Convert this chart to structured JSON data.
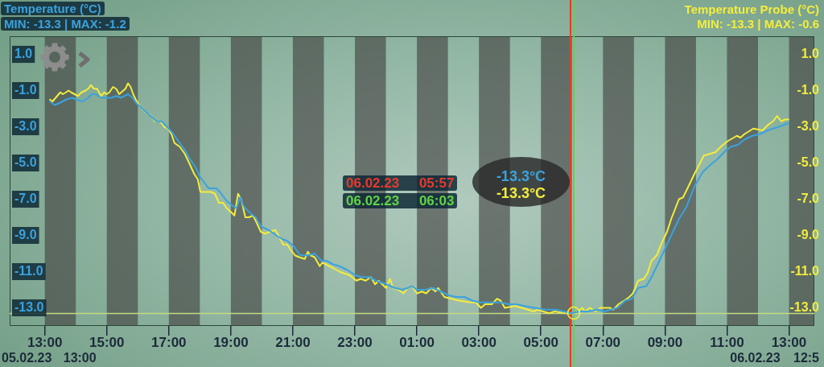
{
  "chart_data": {
    "type": "line",
    "ylabel": "Temperature (°C)",
    "y2label": "Temperature Probe (°C)",
    "annotations": [
      "MIN: -13.3 | MAX: -1.2",
      "MIN: -13.3 | MAX: -0.6",
      "-13.3°C",
      "-13.3°C",
      "05.02.23 13:00",
      "06.02.23 12:5"
    ],
    "xlim": [
      "--02-05T11:52",
      "--02-06T13:49"
    ],
    "xticks": [
      {
        "value": "--02-05T13:00",
        "label": "13:00"
      },
      {
        "value": "--02-05T15:00",
        "label": "15:00"
      },
      {
        "value": "--02-05T17:00",
        "label": "17:00"
      },
      {
        "value": "--02-05T19:00",
        "label": "19:00"
      },
      {
        "value": "--02-05T21:00",
        "label": "21:00"
      },
      {
        "value": "--02-05T23:00",
        "label": "23:00"
      },
      {
        "value": "--02-06T01:00",
        "label": "01:00"
      },
      {
        "value": "--02-06T03:00",
        "label": "03:00"
      },
      {
        "value": "--02-06T05:00",
        "label": "05:00"
      },
      {
        "value": "--02-06T07:00",
        "label": "07:00"
      },
      {
        "value": "--02-06T09:00",
        "label": "09:00"
      },
      {
        "value": "--02-06T11:00",
        "label": "11:00"
      },
      {
        "value": "--02-06T13:00",
        "label": "13:00"
      }
    ],
    "ylim": [
      -14,
      2
    ],
    "yticks": [
      {
        "value": 1,
        "label": "1.0"
      },
      {
        "value": -1,
        "label": "-1.0"
      },
      {
        "value": -3,
        "label": "-3.0"
      },
      {
        "value": -5,
        "label": "-5.0"
      },
      {
        "value": -7,
        "label": "-7.0"
      },
      {
        "value": -9,
        "label": "-9.0"
      },
      {
        "value": -11,
        "label": "-11.0"
      },
      {
        "value": -13,
        "label": "-13.0"
      }
    ],
    "y2lim": [
      -14,
      2
    ],
    "y2ticks": [
      {
        "value": 1,
        "label": "1.0"
      },
      {
        "value": -1,
        "label": "-1.0"
      },
      {
        "value": -3,
        "label": "-3.0"
      },
      {
        "value": -5,
        "label": "-5.0"
      },
      {
        "value": -7,
        "label": "-7.0"
      },
      {
        "value": -9,
        "label": "-9.0"
      },
      {
        "value": -11,
        "label": "-11.0"
      },
      {
        "value": -13,
        "label": "-13.0"
      }
    ],
    "ref_lines": [
      {
        "axis": "x",
        "value": "--02-06T05:57",
        "label": "06.02.23 05:57",
        "color": "#e8392b"
      },
      {
        "axis": "x",
        "value": "--02-06T06:03",
        "label": "06.02.23 06:03",
        "color": "#5fd545"
      },
      {
        "axis": "y",
        "value": -13.3,
        "color": "#c2da84"
      }
    ],
    "bands": [
      {
        "axis": "x",
        "from": "--02-05T13:00",
        "to": "--02-05T14:00",
        "color": "#403c3c"
      },
      {
        "axis": "x",
        "from": "--02-05T15:00",
        "to": "--02-05T16:00",
        "color": "#403c3c"
      },
      {
        "axis": "x",
        "from": "--02-05T17:00",
        "to": "--02-05T18:00",
        "color": "#403c3c"
      },
      {
        "axis": "x",
        "from": "--02-05T19:00",
        "to": "--02-05T20:00",
        "color": "#403c3c"
      },
      {
        "axis": "x",
        "from": "--02-05T21:00",
        "to": "--02-05T22:00",
        "color": "#403c3c"
      },
      {
        "axis": "x",
        "from": "--02-05T23:00",
        "to": "--02-06T00:00",
        "color": "#403c3c"
      },
      {
        "axis": "x",
        "from": "--02-06T01:00",
        "to": "--02-06T02:00",
        "color": "#403c3c"
      },
      {
        "axis": "x",
        "from": "--02-06T03:00",
        "to": "--02-06T04:00",
        "color": "#403c3c"
      },
      {
        "axis": "x",
        "from": "--02-06T05:00",
        "to": "--02-06T06:00",
        "color": "#403c3c"
      },
      {
        "axis": "x",
        "from": "--02-06T07:00",
        "to": "--02-06T08:00",
        "color": "#403c3c"
      },
      {
        "axis": "x",
        "from": "--02-06T09:00",
        "to": "--02-06T10:00",
        "color": "#403c3c"
      },
      {
        "axis": "x",
        "from": "--02-06T11:00",
        "to": "--02-06T12:00",
        "color": "#403c3c"
      },
      {
        "axis": "x",
        "from": "--02-06T13:00",
        "to": "--02-06T13:49",
        "color": "#403c3c"
      }
    ],
    "series": [
      {
        "color": "#3ba2de",
        "axis": "y",
        "x": [
          "--02-05T13:10",
          "--02-05T13:19",
          "--02-05T13:28",
          "--02-05T13:41",
          "--02-05T13:53",
          "--02-05T14:01",
          "--02-05T14:13",
          "--02-05T14:24",
          "--02-05T14:31",
          "--02-05T14:39",
          "--02-05T14:49",
          "--02-05T14:59",
          "--02-05T15:09",
          "--02-05T15:19",
          "--02-05T15:27",
          "--02-05T15:41",
          "--02-05T15:50",
          "--02-05T15:57",
          "--02-05T16:05",
          "--02-05T16:20",
          "--02-05T16:36",
          "--02-05T16:46",
          "--02-05T16:56",
          "--02-05T17:06",
          "--02-05T17:16",
          "--02-05T17:29",
          "--02-05T17:41",
          "--02-05T17:51",
          "--02-05T18:01",
          "--02-05T18:17",
          "--02-05T18:32",
          "--02-05T18:39",
          "--02-05T18:52",
          "--02-05T19:05",
          "--02-05T19:11",
          "--02-05T19:18",
          "--02-05T19:25",
          "--02-05T19:35",
          "--02-05T19:48",
          "--02-05T19:58",
          "--02-05T20:13",
          "--02-05T20:28",
          "--02-05T20:39",
          "--02-05T20:49",
          "--02-05T21:02",
          "--02-05T21:14",
          "--02-05T21:29",
          "--02-05T21:42",
          "--02-05T21:55",
          "--02-05T22:05",
          "--02-05T22:18",
          "--02-05T22:30",
          "--02-05T22:45",
          "--02-05T23:01",
          "--02-05T23:13",
          "--02-05T23:28",
          "--02-05T23:41",
          "--02-06T00:01",
          "--02-06T00:17",
          "--02-06T00:32",
          "--02-06T00:42",
          "--02-06T00:50",
          "--02-06T01:00",
          "--02-06T01:16",
          "--02-06T01:31",
          "--02-06T01:46",
          "--02-06T02:01",
          "--02-06T02:16",
          "--02-06T02:32",
          "--02-06T02:47",
          "--02-06T03:02",
          "--02-06T03:22",
          "--02-06T03:42",
          "--02-06T03:57",
          "--02-06T04:13",
          "--02-06T04:28",
          "--02-06T04:48",
          "--02-06T05:09",
          "--02-06T05:29",
          "--02-06T05:44",
          "--02-06T05:59",
          "--02-06T06:14",
          "--02-06T06:30",
          "--02-06T06:50",
          "--02-06T07:03",
          "--02-06T07:15",
          "--02-06T07:28",
          "--02-06T07:43",
          "--02-06T07:56",
          "--02-06T08:08",
          "--02-06T08:24",
          "--02-06T08:34",
          "--02-06T08:46",
          "--02-06T08:59",
          "--02-06T09:12",
          "--02-06T09:27",
          "--02-06T09:42",
          "--02-06T09:57",
          "--02-06T10:13",
          "--02-06T10:28",
          "--02-06T10:41",
          "--02-06T10:58",
          "--02-06T11:08",
          "--02-06T11:21",
          "--02-06T11:34",
          "--02-06T11:49",
          "--02-06T12:04",
          "--02-06T12:19",
          "--02-06T12:29",
          "--02-06T12:40",
          "--02-06T12:50",
          "--02-06T12:59"
        ],
        "values": [
          -1.6,
          -1.8,
          -1.7,
          -1.5,
          -1.4,
          -1.5,
          -1.6,
          -1.4,
          -1.2,
          -1.2,
          -1.4,
          -1.4,
          -1.4,
          -1.3,
          -1.4,
          -1.2,
          -1.4,
          -1.7,
          -1.9,
          -2.3,
          -2.7,
          -2.7,
          -3.0,
          -3.3,
          -3.7,
          -4.2,
          -4.8,
          -5.2,
          -5.8,
          -6.4,
          -6.4,
          -6.6,
          -7.1,
          -7.4,
          -7.5,
          -6.9,
          -7.4,
          -7.7,
          -8.0,
          -8.5,
          -8.7,
          -9.0,
          -9.2,
          -9.3,
          -9.6,
          -10.1,
          -10.1,
          -10.0,
          -10.4,
          -10.4,
          -10.6,
          -10.7,
          -10.9,
          -11.2,
          -11.3,
          -11.3,
          -11.5,
          -11.7,
          -11.9,
          -12.0,
          -11.9,
          -11.8,
          -12.0,
          -12.0,
          -11.9,
          -12.1,
          -12.3,
          -12.4,
          -12.4,
          -12.6,
          -12.7,
          -12.7,
          -12.7,
          -12.8,
          -12.8,
          -12.9,
          -13.0,
          -13.1,
          -13.1,
          -13.2,
          -13.3,
          -13.2,
          -13.2,
          -13.1,
          -13.2,
          -13.1,
          -13.0,
          -12.6,
          -12.5,
          -11.9,
          -11.8,
          -11.3,
          -10.6,
          -9.8,
          -9.0,
          -8.1,
          -7.4,
          -6.3,
          -5.5,
          -5.1,
          -4.8,
          -4.3,
          -4.1,
          -4.0,
          -3.7,
          -3.5,
          -3.4,
          -3.2,
          -3.1,
          -3.0,
          -2.9,
          -2.8
        ]
      },
      {
        "color": "#f4ec3c",
        "axis": "y2",
        "x": [
          "--02-05T13:10",
          "--02-05T13:15",
          "--02-05T13:30",
          "--02-05T13:35",
          "--02-05T13:41",
          "--02-05T13:46",
          "--02-05T13:51",
          "--02-05T14:04",
          "--02-05T14:11",
          "--02-05T14:19",
          "--02-05T14:24",
          "--02-05T14:29",
          "--02-05T14:35",
          "--02-05T14:41",
          "--02-05T14:49",
          "--02-05T14:55",
          "--02-05T15:00",
          "--02-05T15:05",
          "--02-05T15:12",
          "--02-05T15:18",
          "--02-05T15:24",
          "--02-05T15:36",
          "--02-05T15:41",
          "--02-05T15:46",
          "--02-05T15:51",
          "--02-05T15:56",
          "--02-05T16:05",
          "--02-05T16:15",
          "--02-05T16:25",
          "--02-05T16:33",
          "--02-05T16:43",
          "--02-05T16:51",
          "--02-05T16:58",
          "--02-05T17:05",
          "--02-05T17:11",
          "--02-05T17:21",
          "--02-05T17:31",
          "--02-05T17:41",
          "--02-05T17:49",
          "--02-05T17:56",
          "--02-05T18:01",
          "--02-05T18:09",
          "--02-05T18:22",
          "--02-05T18:29",
          "--02-05T18:37",
          "--02-05T18:45",
          "--02-05T18:52",
          "--02-05T19:00",
          "--02-05T19:07",
          "--02-05T19:14",
          "--02-05T19:20",
          "--02-05T19:28",
          "--02-05T19:35",
          "--02-05T19:43",
          "--02-05T19:50",
          "--02-05T19:58",
          "--02-05T20:06",
          "--02-05T20:26",
          "--02-05T20:34",
          "--02-05T20:41",
          "--02-05T20:49",
          "--02-05T20:56",
          "--02-05T21:04",
          "--02-05T21:12",
          "--02-05T21:23",
          "--02-05T21:29",
          "--02-05T21:34",
          "--02-05T21:42",
          "--02-05T21:52",
          "--02-05T21:57",
          "--02-05T22:18",
          "--02-05T22:30",
          "--02-05T22:50",
          "--02-05T23:03",
          "--02-05T23:11",
          "--02-05T23:21",
          "--02-05T23:31",
          "--02-05T23:39",
          "--02-05T23:46",
          "--02-06T00:00",
          "--02-06T00:08",
          "--02-06T00:14",
          "--02-06T00:24",
          "--02-06T00:34",
          "--02-06T00:42",
          "--02-06T00:50",
          "--02-06T01:00",
          "--02-06T01:10",
          "--02-06T01:18",
          "--02-06T01:28",
          "--02-06T01:36",
          "--02-06T01:41",
          "--02-06T01:53",
          "--02-06T02:21",
          "--02-06T02:44",
          "--02-06T02:54",
          "--02-06T03:04",
          "--02-06T03:12",
          "--02-06T03:25",
          "--02-06T03:35",
          "--02-06T03:42",
          "--02-06T03:50",
          "--02-06T04:10",
          "--02-06T04:23",
          "--02-06T04:46",
          "--02-06T04:53",
          "--02-06T05:16",
          "--02-06T05:26",
          "--02-06T05:49",
          "--02-06T06:02",
          "--02-06T06:12",
          "--02-06T06:20",
          "--02-06T06:25",
          "--02-06T06:35",
          "--02-06T06:45",
          "--02-06T06:55",
          "--02-06T07:13",
          "--02-06T07:20",
          "--02-06T07:30",
          "--02-06T07:41",
          "--02-06T07:51",
          "--02-06T07:58",
          "--02-06T08:08",
          "--02-06T08:19",
          "--02-06T08:26",
          "--02-06T08:34",
          "--02-06T08:44",
          "--02-06T08:54",
          "--02-06T09:04",
          "--02-06T09:12",
          "--02-06T09:27",
          "--02-06T09:35",
          "--02-06T09:47",
          "--02-06T09:57",
          "--02-06T10:08",
          "--02-06T10:15",
          "--02-06T10:38",
          "--02-06T10:48",
          "--02-06T11:01",
          "--02-06T11:19",
          "--02-06T11:26",
          "--02-06T11:34",
          "--02-06T11:51",
          "--02-06T12:09",
          "--02-06T12:19",
          "--02-06T12:29",
          "--02-06T12:37",
          "--02-06T12:45",
          "--02-06T12:52",
          "--02-06T12:59"
        ],
        "values": [
          -1.5,
          -1.6,
          -1.1,
          -1.2,
          -1.1,
          -1.0,
          -1.1,
          -1.3,
          -1.1,
          -1.0,
          -0.9,
          -0.7,
          -0.9,
          -0.9,
          -1.3,
          -1.1,
          -1.2,
          -1.1,
          -0.8,
          -0.9,
          -1.2,
          -0.9,
          -0.6,
          -0.8,
          -1.2,
          -1.5,
          -1.9,
          -2.2,
          -2.4,
          -2.7,
          -2.7,
          -3.0,
          -3.1,
          -3.4,
          -3.9,
          -4.1,
          -4.5,
          -5.1,
          -5.6,
          -5.9,
          -6.6,
          -6.6,
          -6.6,
          -6.7,
          -7.2,
          -7.2,
          -7.5,
          -7.7,
          -7.9,
          -6.7,
          -7.0,
          -8.0,
          -8.0,
          -7.9,
          -8.3,
          -8.8,
          -8.9,
          -8.7,
          -9.1,
          -9.5,
          -9.5,
          -9.8,
          -10.1,
          -10.2,
          -10.3,
          -9.9,
          -10.1,
          -10.2,
          -10.7,
          -10.5,
          -10.8,
          -11.0,
          -11.2,
          -11.5,
          -11.4,
          -11.5,
          -11.3,
          -11.7,
          -11.5,
          -11.9,
          -11.4,
          -11.9,
          -12.0,
          -12.2,
          -11.9,
          -11.8,
          -12.2,
          -12.1,
          -12.2,
          -11.9,
          -12.1,
          -11.9,
          -12.4,
          -12.6,
          -12.7,
          -12.7,
          -13.0,
          -12.8,
          -12.8,
          -12.5,
          -12.6,
          -13.0,
          -12.9,
          -13.0,
          -13.2,
          -13.1,
          -13.3,
          -13.2,
          -13.3,
          -13.3,
          -13.2,
          -13.0,
          -13.2,
          -13.0,
          -13.2,
          -13.0,
          -13.0,
          -13.1,
          -12.8,
          -12.6,
          -12.4,
          -12.2,
          -11.5,
          -11.4,
          -11.1,
          -10.4,
          -10.1,
          -9.4,
          -8.8,
          -8.1,
          -7.0,
          -6.9,
          -6.2,
          -5.6,
          -5.0,
          -4.6,
          -4.4,
          -4.1,
          -3.8,
          -3.5,
          -3.6,
          -3.4,
          -3.1,
          -3.2,
          -2.9,
          -2.7,
          -2.4,
          -2.7,
          -2.6,
          -2.6
        ]
      }
    ]
  }
}
